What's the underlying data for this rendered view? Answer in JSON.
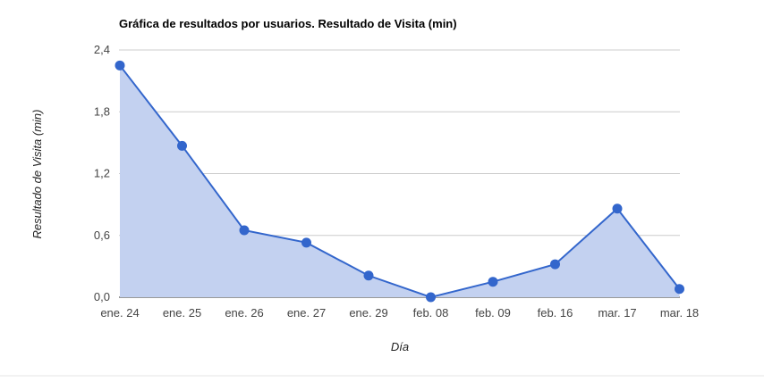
{
  "chart_data": {
    "type": "area",
    "title": "Gráfica de resultados por usuarios. Resultado de Visita (min)",
    "xlabel": "Día",
    "ylabel": "Resultado de Visita (min)",
    "ylim": [
      0,
      2.4
    ],
    "yticks": [
      "0,0",
      "0,6",
      "1,2",
      "1,8",
      "2,4"
    ],
    "ytick_values": [
      0,
      0.6,
      1.2,
      1.8,
      2.4
    ],
    "categories": [
      "ene. 24",
      "ene. 25",
      "ene. 26",
      "ene. 27",
      "ene. 29",
      "feb. 08",
      "feb. 09",
      "feb. 16",
      "mar. 17",
      "mar. 18"
    ],
    "values": [
      2.25,
      1.47,
      0.65,
      0.53,
      0.21,
      0.0,
      0.15,
      0.32,
      0.86,
      0.08
    ],
    "grid": true,
    "legend": "none",
    "colors": {
      "line": "#3366cc",
      "fill": "#c3d1f0",
      "grid": "#cccccc"
    }
  }
}
